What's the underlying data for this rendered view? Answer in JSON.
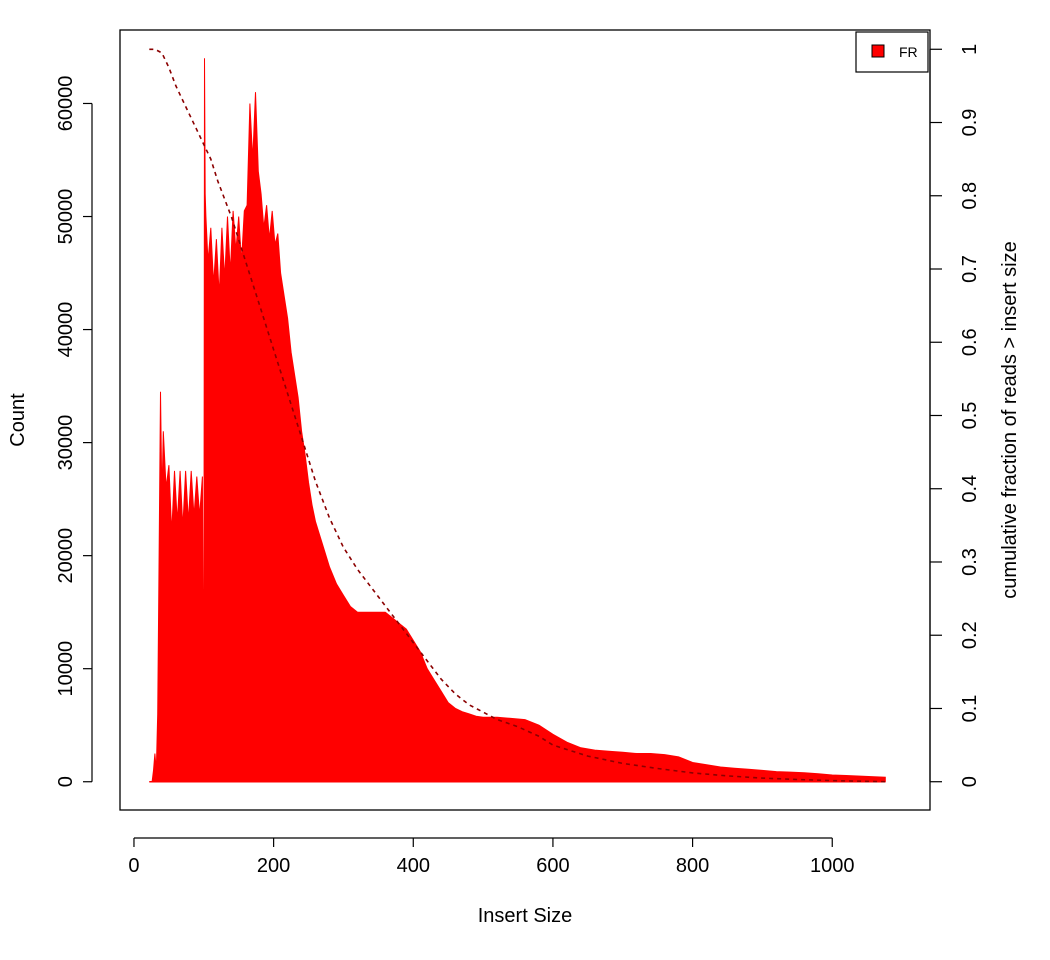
{
  "chart_data": {
    "type": "area",
    "title": "",
    "xlabel": "Insert Size",
    "ylabel": "Count",
    "y2label": "cumulative fraction of reads > insert size",
    "xlim": [
      -20,
      1140
    ],
    "ylim": [
      -2500,
      66500
    ],
    "y2lim": [
      -0.0386,
      1.0263
    ],
    "x_ticks": [
      0,
      200,
      400,
      600,
      800,
      1000
    ],
    "x_tick_labels": [
      "0",
      "200",
      "400",
      "600",
      "800",
      "1000"
    ],
    "y_ticks": [
      0,
      10000,
      20000,
      30000,
      40000,
      50000,
      60000
    ],
    "y_tick_labels": [
      "0",
      "10000",
      "20000",
      "30000",
      "40000",
      "50000",
      "60000"
    ],
    "y2_ticks": [
      0,
      0.1,
      0.2,
      0.3,
      0.4,
      0.5,
      0.6,
      0.7,
      0.8,
      0.9,
      1
    ],
    "y2_tick_labels": [
      "0",
      "0.1",
      "0.2",
      "0.3",
      "0.4",
      "0.5",
      "0.6",
      "0.7",
      "0.8",
      "0.9",
      "1"
    ],
    "legend": {
      "position": "top-right",
      "entries": [
        {
          "label": "FR",
          "color": "#ff0000"
        }
      ]
    },
    "colors": {
      "histogram": "#ff0000",
      "cumulative": "#8b0000"
    },
    "series": [
      {
        "name": "FR",
        "style": "histogram",
        "x": [
          22,
          26,
          28,
          30,
          32,
          34,
          36,
          38,
          40,
          42,
          46,
          50,
          54,
          58,
          62,
          66,
          70,
          74,
          78,
          82,
          86,
          90,
          94,
          98,
          100,
          101,
          102,
          103,
          106,
          110,
          114,
          118,
          122,
          126,
          130,
          134,
          138,
          142,
          146,
          150,
          154,
          158,
          162,
          166,
          170,
          174,
          178,
          182,
          186,
          190,
          194,
          198,
          202,
          206,
          210,
          215,
          220,
          225,
          230,
          235,
          240,
          245,
          250,
          255,
          260,
          265,
          270,
          275,
          280,
          290,
          300,
          310,
          320,
          330,
          340,
          350,
          360,
          370,
          380,
          390,
          400,
          410,
          420,
          430,
          440,
          450,
          460,
          470,
          480,
          490,
          500,
          520,
          540,
          560,
          580,
          600,
          620,
          640,
          660,
          680,
          700,
          720,
          740,
          760,
          780,
          800,
          820,
          840,
          860,
          880,
          900,
          920,
          940,
          960,
          980,
          1000,
          1020,
          1040,
          1060,
          1076
        ],
        "y": [
          0,
          0,
          1000,
          2500,
          1000,
          6000,
          20000,
          34500,
          25000,
          31000,
          26000,
          28000,
          22000,
          27500,
          23000,
          27500,
          22500,
          27500,
          23000,
          27500,
          23500,
          27000,
          23500,
          27000,
          2000,
          64000,
          52000,
          50000,
          46000,
          49000,
          44000,
          48000,
          43000,
          49000,
          44500,
          50000,
          45000,
          50500,
          47000,
          50000,
          46000,
          50500,
          51000,
          60000,
          55000,
          61000,
          54000,
          52000,
          49000,
          51000,
          48000,
          50500,
          47500,
          48500,
          45000,
          43000,
          41000,
          38000,
          36000,
          34000,
          31000,
          29000,
          26500,
          24500,
          23000,
          22000,
          21000,
          20000,
          19000,
          17500,
          16500,
          15500,
          15000,
          15000,
          15000,
          15000,
          15000,
          14500,
          14000,
          13500,
          12500,
          11500,
          10000,
          9000,
          8000,
          7000,
          6500,
          6200,
          6000,
          5800,
          5700,
          5700,
          5600,
          5500,
          5000,
          4200,
          3500,
          3000,
          2800,
          2700,
          2600,
          2500,
          2500,
          2400,
          2200,
          1700,
          1500,
          1300,
          1200,
          1100,
          1000,
          900,
          850,
          800,
          700,
          600,
          550,
          500,
          450,
          400
        ]
      },
      {
        "name": "",
        "style": "dashed-line",
        "axis": "right",
        "x": [
          22,
          30,
          40,
          50,
          60,
          70,
          80,
          90,
          100,
          110,
          120,
          140,
          160,
          180,
          200,
          220,
          240,
          260,
          280,
          300,
          320,
          340,
          360,
          380,
          400,
          420,
          440,
          460,
          480,
          500,
          520,
          550,
          580,
          600,
          650,
          700,
          750,
          800,
          850,
          900,
          950,
          1000,
          1076
        ],
        "y": [
          1.0,
          1.0,
          0.995,
          0.975,
          0.95,
          0.93,
          0.91,
          0.89,
          0.87,
          0.85,
          0.82,
          0.77,
          0.71,
          0.65,
          0.59,
          0.53,
          0.47,
          0.41,
          0.36,
          0.32,
          0.29,
          0.265,
          0.24,
          0.215,
          0.19,
          0.165,
          0.14,
          0.12,
          0.105,
          0.095,
          0.085,
          0.075,
          0.062,
          0.05,
          0.035,
          0.025,
          0.018,
          0.012,
          0.008,
          0.005,
          0.003,
          0.0015,
          0.0
        ]
      }
    ]
  }
}
